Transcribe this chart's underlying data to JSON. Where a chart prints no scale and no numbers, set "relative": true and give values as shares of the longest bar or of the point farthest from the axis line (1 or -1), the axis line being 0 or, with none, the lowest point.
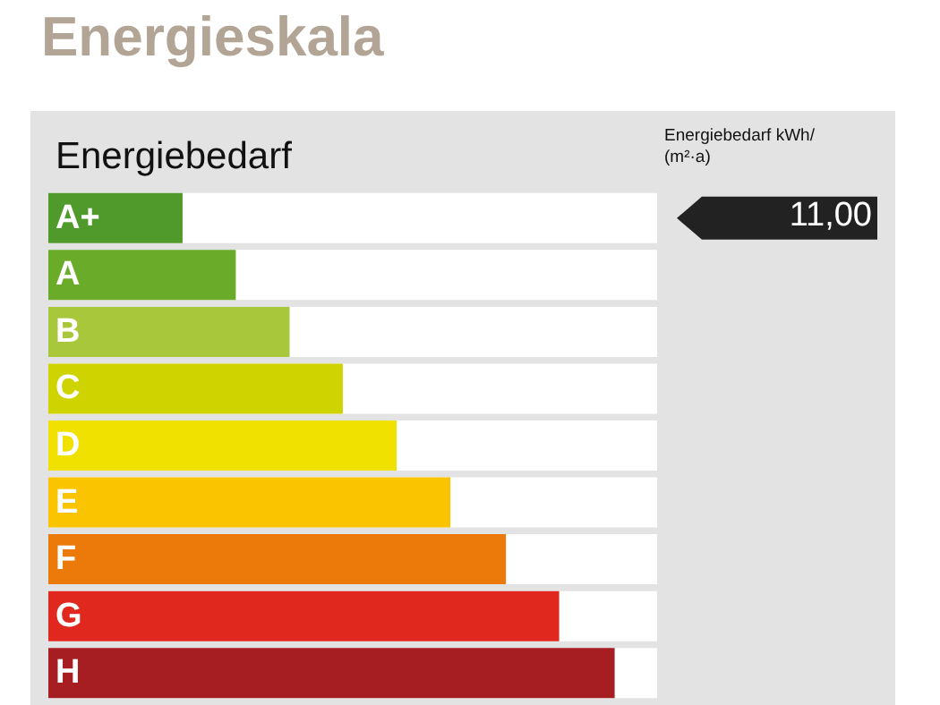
{
  "chart_data": {
    "type": "bar",
    "orientation": "horizontal",
    "relative": true,
    "title": "Energieskala",
    "subtitle": "Energiebedarf",
    "categories": [
      "A+",
      "A",
      "B",
      "C",
      "D",
      "E",
      "F",
      "G",
      "H"
    ],
    "values": [
      0.237,
      0.331,
      0.426,
      0.52,
      0.615,
      0.71,
      0.808,
      0.902,
      1
    ],
    "colors": [
      "#4f9a2a",
      "#6aab2a",
      "#a8c73a",
      "#cfd400",
      "#f0e100",
      "#fbc400",
      "#ec7a0a",
      "#e0281e",
      "#a61d22"
    ],
    "annotations": [
      "Energiebedarf kWh/(m²·a)",
      "11,00"
    ]
  }
}
